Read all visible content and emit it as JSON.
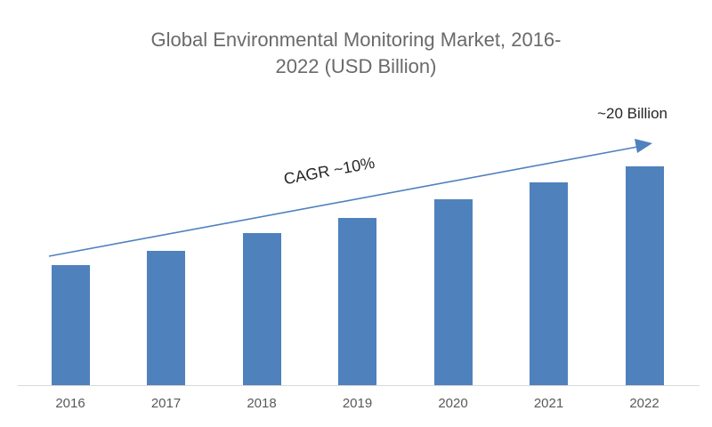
{
  "title": {
    "line1": "Global Environmental Monitoring Market, 2016-",
    "line2": "2022 (USD Billion)"
  },
  "annotations": {
    "cagr": "CAGR ~10%",
    "endpoint": "~20 Billion"
  },
  "colors": {
    "bar": "#4f81bd",
    "arrow": "#4f81bd",
    "title_text": "#6a6a6a",
    "axis_label_text": "#595959",
    "annotation_text": "#262626",
    "axis_line": "#d9d9d9"
  },
  "chart_data": {
    "type": "bar",
    "categories": [
      "2016",
      "2017",
      "2018",
      "2019",
      "2020",
      "2021",
      "2022"
    ],
    "values": [
      11.0,
      12.3,
      13.9,
      15.3,
      17.0,
      18.5,
      20.0
    ],
    "title": "Global Environmental Monitoring Market, 2016-2022 (USD Billion)",
    "xlabel": "",
    "ylabel": "",
    "unit": "USD Billion",
    "ylim": [
      0,
      20
    ],
    "grid": "off",
    "legend": "none",
    "annotations": [
      "CAGR ~10%",
      "~20 Billion"
    ]
  }
}
